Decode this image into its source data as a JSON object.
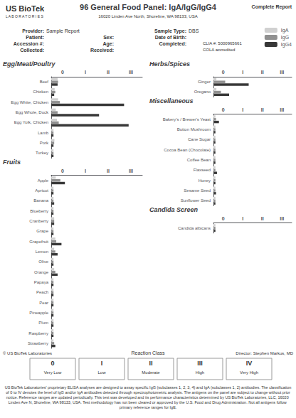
{
  "title": "96 General Food Panel: IgA/IgG/IgG4",
  "annotations": [
    "US BioTek",
    "L A B O R A T O R I E S",
    "16020 Linden Ave North, Shoreline, WA 98133, USA",
    "Complete Report",
    "Provider:",
    "Sample Report",
    "Patient:",
    "Accession #:",
    "Collected:",
    "Sex:",
    "Age:",
    "Received:",
    "Sample Type:",
    "DBS",
    "Date of Birth:",
    "Completed:",
    "CLIA #: 5000965661",
    "COLA accredited",
    "© US BioTek Laboratories",
    "Reaction Class",
    "Director: Stephen Markus, MD",
    "0",
    "Very Low",
    "I",
    "Low",
    "II",
    "Moderate",
    "III",
    "High",
    "IV",
    "Very High",
    "US BioTek Laboratories' proprietary ELISA analyses are designed to assay specific IgG (subclasses 1, 2, 3, 4) and IgA (subclasses 1, 2) antibodies. The classification of 0 to IV denotes the level of IgG and/or IgA antibodies detected through spectrophotometric analysis. The antigens on the panel are subject to change without prior notice. Reference ranges are updated periodically. This test was developed and its performance characteristics determined by US BioTek Laboratories, LLC, 16020 Linden Ave N, Shoreline, WA 98133, USA. Test methodology has not been cleared or approved by the U.S. Food and Drug Administration. Not all antigens follow primary reference ranges for IgE."
  ],
  "chart_data": [
    {
      "type": "bar",
      "orientation": "horizontal",
      "title": "Egg/Meat/Poultry",
      "categories": [
        "Beef",
        "Chicken",
        "Egg White, Chicken",
        "Egg Whole, Duck",
        "Egg Yolk, Chicken",
        "Lamb",
        "Pork",
        "Turkey"
      ],
      "series": [
        {
          "name": "IgA",
          "color": "#d0d0d0",
          "values": [
            0.28,
            0.15,
            0.3,
            0.2,
            0.25,
            0.1,
            0.14,
            0.1
          ]
        },
        {
          "name": "IgG",
          "color": "#909090",
          "values": [
            0.3,
            0.18,
            0.38,
            0.28,
            0.33,
            0.1,
            0.13,
            0.1
          ]
        },
        {
          "name": "IgG4",
          "color": "#383838",
          "values": [
            0.28,
            0.13,
            3.2,
            2.1,
            3.4,
            0.1,
            0.1,
            0.1
          ]
        }
      ],
      "xlim": [
        0,
        4.0
      ],
      "xticks": [
        {
          "value": 0.5,
          "label": "0"
        },
        {
          "value": 1.5,
          "label": "I"
        },
        {
          "value": 2.5,
          "label": "II"
        },
        {
          "value": 3.5,
          "label": "III"
        }
      ],
      "grid": false,
      "legend": "upper right"
    },
    {
      "type": "bar",
      "orientation": "horizontal",
      "title": "Fruits",
      "categories": [
        "Apple",
        "Apricot",
        "Banana",
        "Blueberry",
        "Cranberry",
        "Grape",
        "Grapefruit",
        "Lemon",
        "Olive",
        "Orange",
        "Papaya",
        "Peach",
        "Pear",
        "Pineapple",
        "Plum",
        "Raspberry",
        "Strawberry"
      ],
      "series": [
        {
          "name": "IgA",
          "color": "#d0d0d0",
          "values": [
            0.2,
            0.1,
            0.1,
            0.1,
            0.13,
            0.1,
            0.18,
            0.13,
            0.1,
            0.13,
            0.1,
            0.1,
            0.1,
            0.1,
            0.1,
            0.1,
            0.1
          ]
        },
        {
          "name": "IgG",
          "color": "#909090",
          "values": [
            0.4,
            0.1,
            0.1,
            0.1,
            0.13,
            0.1,
            0.22,
            0.18,
            0.1,
            0.18,
            0.1,
            0.1,
            0.1,
            0.1,
            0.1,
            0.1,
            0.13
          ]
        },
        {
          "name": "IgG4",
          "color": "#383838",
          "values": [
            0.6,
            0.1,
            0.13,
            0.1,
            0.13,
            0.1,
            0.45,
            0.28,
            0.1,
            0.28,
            0.1,
            0.1,
            0.1,
            0.1,
            0.1,
            0.1,
            0.18
          ]
        }
      ],
      "xlim": [
        0,
        4.0
      ],
      "xticks": [
        {
          "value": 0.5,
          "label": "0"
        },
        {
          "value": 1.5,
          "label": "I"
        },
        {
          "value": 2.5,
          "label": "II"
        },
        {
          "value": 3.5,
          "label": "III"
        }
      ],
      "grid": false
    },
    {
      "type": "bar",
      "orientation": "horizontal",
      "title": "Herbs/Spices",
      "categories": [
        "Ginger",
        "Oregano"
      ],
      "series": [
        {
          "name": "IgA",
          "color": "#d0d0d0",
          "values": [
            0.15,
            0.15
          ]
        },
        {
          "name": "IgG",
          "color": "#909090",
          "values": [
            0.6,
            0.38
          ]
        },
        {
          "name": "IgG4",
          "color": "#383838",
          "values": [
            1.8,
            0.8
          ]
        }
      ],
      "xlim": [
        0,
        4.0
      ],
      "xticks": [
        {
          "value": 0.5,
          "label": "0"
        },
        {
          "value": 1.5,
          "label": "I"
        },
        {
          "value": 2.5,
          "label": "II"
        },
        {
          "value": 3.5,
          "label": "III"
        }
      ],
      "grid": false
    },
    {
      "type": "bar",
      "orientation": "horizontal",
      "title": "Miscellaneous",
      "categories": [
        "Bakery's / Brewer's Yeast",
        "Button Mushroom",
        "Cane Sugar",
        "Cocoa Bean (Chocolate)",
        "Coffee Bean",
        "Flaxseed",
        "Honey",
        "Sesame Seed",
        "Sunflower Seed"
      ],
      "series": [
        {
          "name": "IgA",
          "color": "#d0d0d0",
          "values": [
            0.1,
            0.1,
            0.1,
            0.1,
            0.1,
            0.1,
            0.1,
            0.1,
            0.1
          ]
        },
        {
          "name": "IgG",
          "color": "#909090",
          "values": [
            0.13,
            0.1,
            0.1,
            0.1,
            0.1,
            0.1,
            0.1,
            0.1,
            0.1
          ]
        },
        {
          "name": "IgG4",
          "color": "#383838",
          "values": [
            0.28,
            0.1,
            0.1,
            0.1,
            0.1,
            0.18,
            0.1,
            0.13,
            0.1
          ]
        }
      ],
      "xlim": [
        0,
        4.0
      ],
      "xticks": [
        {
          "value": 0.5,
          "label": "0"
        },
        {
          "value": 1.5,
          "label": "I"
        },
        {
          "value": 2.5,
          "label": "II"
        },
        {
          "value": 3.5,
          "label": "III"
        }
      ],
      "grid": false
    },
    {
      "type": "bar",
      "orientation": "horizontal",
      "title": "Candida Screen",
      "categories": [
        "Candida albicans"
      ],
      "series": [
        {
          "name": "IgA",
          "color": "#d0d0d0",
          "values": [
            0.1
          ]
        },
        {
          "name": "IgG",
          "color": "#909090",
          "values": [
            0.1
          ]
        },
        {
          "name": "IgG4",
          "color": "#383838",
          "values": [
            0.1
          ]
        }
      ],
      "xlim": [
        0,
        4.0
      ],
      "xticks": [
        {
          "value": 0.5,
          "label": "0"
        },
        {
          "value": 1.5,
          "label": "I"
        },
        {
          "value": 2.5,
          "label": "II"
        },
        {
          "value": 3.5,
          "label": "III"
        }
      ],
      "grid": false
    }
  ]
}
